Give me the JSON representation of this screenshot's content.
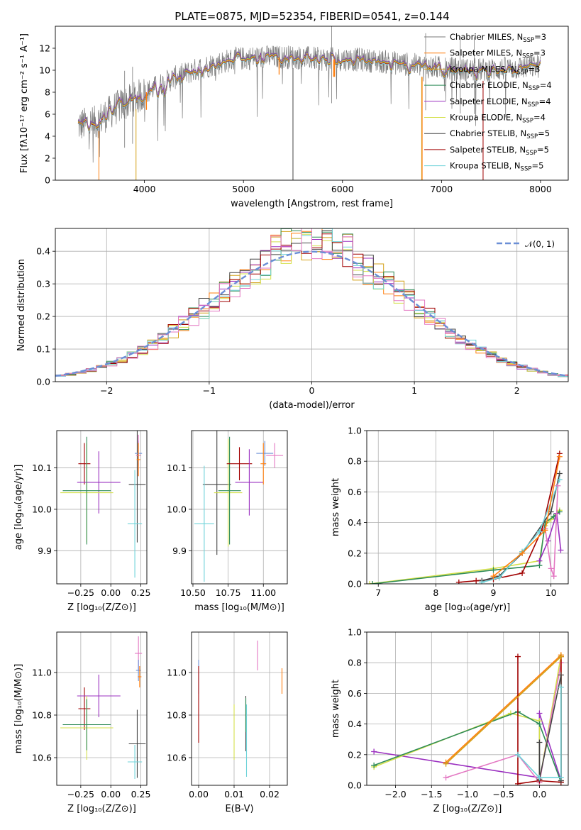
{
  "figure": {
    "title": "PLATE=0875, MJD=52354, FIBERID=0541, z=0.144"
  },
  "colors": {
    "series": [
      "#7a7a7a",
      "#ff7f0e",
      "#d4a017",
      "#2e8b57",
      "#9b30c0",
      "#d4e04a",
      "#444444",
      "#a00000",
      "#6fd3d9"
    ],
    "extra": [
      "#e377c2",
      "#6b8fd6",
      "#d7c64a",
      "#4a4a4a"
    ],
    "normal_curve": "#6b8fd6",
    "grid": "#b0b0b0"
  },
  "chart_data": [
    {
      "id": "spectrum",
      "type": "line",
      "title": "PLATE=0875, MJD=52354, FIBERID=0541, z=0.144",
      "xlabel": "wavelength [Angstrom, rest frame]",
      "ylabel": "Flux [fλ10⁻¹⁷ erg cm⁻² s⁻¹ A⁻¹]",
      "xlim": [
        3100,
        8280
      ],
      "ylim": [
        0,
        14
      ],
      "xticks": [
        4000,
        5000,
        6000,
        7000,
        8000
      ],
      "yticks": [
        0,
        2,
        4,
        6,
        8,
        10,
        12
      ],
      "grid": false,
      "legend_position": "top-right",
      "continuum": {
        "x": [
          3330,
          3500,
          3700,
          3900,
          4100,
          4300,
          4600,
          4900,
          5200,
          5500,
          5800,
          6100,
          6400,
          6700,
          7000,
          7300,
          7600,
          7900,
          8000
        ],
        "y": [
          5.0,
          5.2,
          6.5,
          7.4,
          8.4,
          9.3,
          10.3,
          11.0,
          11.2,
          11.2,
          11.0,
          11.0,
          10.8,
          10.5,
          10.2,
          10.0,
          10.1,
          10.3,
          10.4
        ]
      },
      "series": [
        {
          "name": "Chabrier MILES, N_SSP=3",
          "label": "Chabrier MILES, N",
          "sub": "SSP",
          "suffix": "=3"
        },
        {
          "name": "Salpeter MILES, N_SSP=3",
          "label": "Salpeter MILES, N",
          "sub": "SSP",
          "suffix": "=3"
        },
        {
          "name": "Kroupa MILES, N_SSP=3",
          "label": "Kroupa MILES, N",
          "sub": "SSP",
          "suffix": "=3"
        },
        {
          "name": "Chabrier ELODIE, N_SSP=4",
          "label": "Chabrier ELODIE, N",
          "sub": "SSP",
          "suffix": "=4"
        },
        {
          "name": "Salpeter ELODIE, N_SSP=4",
          "label": "Salpeter ELODIE, N",
          "sub": "SSP",
          "suffix": "=4"
        },
        {
          "name": "Kroupa ELODIE, N_SSP=4",
          "label": "Kroupa ELODIE, N",
          "sub": "SSP",
          "suffix": "=4"
        },
        {
          "name": "Chabrier STELIB, N_SSP=5",
          "label": "Chabrier STELIB, N",
          "sub": "SSP",
          "suffix": "=5"
        },
        {
          "name": "Salpeter STELIB, N_SSP=5",
          "label": "Salpeter STELIB, N",
          "sub": "SSP",
          "suffix": "=5"
        },
        {
          "name": "Kroupa STELIB, N_SSP=5",
          "label": "Kroupa STELIB, N",
          "sub": "SSP",
          "suffix": "=5"
        }
      ]
    },
    {
      "id": "residuals",
      "type": "histogram",
      "xlabel": "(data-model)/error",
      "ylabel": "Normed distribution",
      "xlim": [
        -2.5,
        2.5
      ],
      "ylim": [
        0,
        0.47
      ],
      "xticks": [
        -2,
        -1,
        0,
        1,
        2
      ],
      "xtick_labels": [
        "−2",
        "−1",
        "0",
        "1",
        "2"
      ],
      "yticks": [
        0.0,
        0.1,
        0.2,
        0.3,
        0.4
      ],
      "ytick_labels": [
        "0.0",
        "0.1",
        "0.2",
        "0.3",
        "0.4"
      ],
      "grid": true,
      "legend": "𝒩(0, 1)",
      "legend_position": "top-right",
      "bin_width": 0.1
    },
    {
      "id": "age_vs_Z",
      "type": "errorbar",
      "xlabel": "Z [log₁₀(Z/Z⊙)]",
      "ylabel": "age  [log₁₀(age/yr)]",
      "xlim": [
        -0.45,
        0.3
      ],
      "ylim": [
        9.82,
        10.19
      ],
      "xticks": [
        -0.25,
        0.0,
        0.25
      ],
      "xtick_labels": [
        "−0.25",
        "0.00",
        "0.25"
      ],
      "yticks": [
        9.9,
        10.0,
        10.1
      ],
      "ytick_labels": [
        "9.9",
        "10.0",
        "10.1"
      ],
      "grid": true,
      "points": [
        {
          "x": -0.22,
          "y": 10.11,
          "xe": 0.05,
          "ye": 0.05,
          "c": 7
        },
        {
          "x": -0.1,
          "y": 10.065,
          "xe": 0.18,
          "ye": 0.075,
          "c": 4
        },
        {
          "x": -0.2,
          "y": 10.04,
          "xe": 0.22,
          "ye": 0.12,
          "c": 5
        },
        {
          "x": -0.2,
          "y": 10.045,
          "xe": 0.2,
          "ye": 0.13,
          "c": 3
        },
        {
          "x": 0.22,
          "y": 10.06,
          "xe": 0.07,
          "ye": 0.14,
          "c": 6
        },
        {
          "x": 0.2,
          "y": 9.965,
          "xe": 0.06,
          "ye": 0.13,
          "c": 8
        },
        {
          "x": 0.23,
          "y": 10.135,
          "xe": 0.03,
          "ye": 0.03,
          "c": 10
        },
        {
          "x": 0.23,
          "y": 10.13,
          "xe": 0.02,
          "ye": 0.05,
          "c": 9
        },
        {
          "x": 0.23,
          "y": 10.12,
          "xe": 0.015,
          "ye": 0.04,
          "c": 1
        }
      ]
    },
    {
      "id": "age_vs_mass",
      "type": "errorbar",
      "xlabel": "mass [log₁₀(M/M⊙)]",
      "ylabel": "",
      "xlim": [
        10.49,
        11.17
      ],
      "ylim": [
        9.82,
        10.19
      ],
      "xticks": [
        10.5,
        10.75,
        11.0
      ],
      "xtick_labels": [
        "10.50",
        "10.75",
        "11.00"
      ],
      "yticks": [
        9.9,
        10.0,
        10.1
      ],
      "ytick_labels": [
        "9.9",
        "10.0",
        "10.1"
      ],
      "grid": true,
      "points": [
        {
          "x": 10.67,
          "y": 10.06,
          "xe": 0.1,
          "ye": 0.17,
          "c": 6
        },
        {
          "x": 10.58,
          "y": 9.965,
          "xe": 0.07,
          "ye": 0.14,
          "c": 8
        },
        {
          "x": 10.75,
          "y": 10.04,
          "xe": 0.1,
          "ye": 0.13,
          "c": 5
        },
        {
          "x": 10.76,
          "y": 10.045,
          "xe": 0.08,
          "ye": 0.13,
          "c": 3
        },
        {
          "x": 10.83,
          "y": 10.11,
          "xe": 0.09,
          "ye": 0.04,
          "c": 7
        },
        {
          "x": 10.9,
          "y": 10.065,
          "xe": 0.1,
          "ye": 0.08,
          "c": 4
        },
        {
          "x": 11.01,
          "y": 10.135,
          "xe": 0.06,
          "ye": 0.03,
          "c": 10
        },
        {
          "x": 11.08,
          "y": 10.13,
          "xe": 0.06,
          "ye": 0.03,
          "c": 9
        },
        {
          "x": 11.0,
          "y": 10.11,
          "xe": 0.02,
          "ye": 0.05,
          "c": 1
        }
      ]
    },
    {
      "id": "mass_weight_vs_age",
      "type": "line",
      "xlabel": "age  [log₁₀(age/yr)]",
      "ylabel": "mass weight",
      "xlim": [
        6.8,
        10.3
      ],
      "ylim": [
        0,
        1.0
      ],
      "xticks": [
        7,
        8,
        9,
        10
      ],
      "xtick_labels": [
        "7",
        "8",
        "9",
        "10"
      ],
      "yticks": [
        0.0,
        0.2,
        0.4,
        0.6,
        0.8,
        1.0
      ],
      "ytick_labels": [
        "0.0",
        "0.2",
        "0.4",
        "0.6",
        "0.8",
        "1.0"
      ],
      "grid": true,
      "lines": [
        {
          "c": 5,
          "x": [
            6.85,
            9.0,
            9.8,
            9.9,
            10.0,
            10.1,
            10.15
          ],
          "y": [
            0.0,
            0.1,
            0.15,
            0.38,
            0.42,
            0.46,
            0.48
          ]
        },
        {
          "c": 3,
          "x": [
            6.9,
            9.0,
            9.8,
            9.9,
            10.05,
            10.15
          ],
          "y": [
            0.0,
            0.09,
            0.12,
            0.4,
            0.44,
            0.47
          ]
        },
        {
          "c": 7,
          "x": [
            8.4,
            8.7,
            9.0,
            9.5,
            9.85,
            10.15
          ],
          "y": [
            0.01,
            0.02,
            0.03,
            0.07,
            0.36,
            0.85
          ]
        },
        {
          "c": 6,
          "x": [
            8.8,
            9.1,
            9.5,
            10.0,
            10.15
          ],
          "y": [
            0.02,
            0.05,
            0.2,
            0.47,
            0.72
          ]
        },
        {
          "c": 8,
          "x": [
            8.8,
            9.1,
            9.5,
            9.8,
            10.15
          ],
          "y": [
            0.01,
            0.04,
            0.21,
            0.34,
            0.68
          ]
        },
        {
          "c": 4,
          "x": [
            9.8,
            9.95,
            10.1,
            10.17
          ],
          "y": [
            0.15,
            0.28,
            0.46,
            0.22
          ]
        },
        {
          "c": 9,
          "x": [
            9.9,
            10.0,
            10.05,
            10.12
          ],
          "y": [
            0.36,
            0.1,
            0.05,
            0.64
          ]
        },
        {
          "c": 1,
          "x": [
            9.0,
            9.5,
            9.9,
            10.15
          ],
          "y": [
            0.05,
            0.2,
            0.35,
            0.83
          ]
        }
      ]
    },
    {
      "id": "mass_vs_Z",
      "type": "errorbar",
      "xlabel": "Z [log₁₀(Z/Z⊙)]",
      "ylabel": "mass [log₁₀(M/M⊙)]",
      "xlim": [
        -0.45,
        0.3
      ],
      "ylim": [
        10.47,
        11.19
      ],
      "xticks": [
        -0.25,
        0.0,
        0.25
      ],
      "xtick_labels": [
        "−0.25",
        "0.00",
        "0.25"
      ],
      "yticks": [
        10.6,
        10.8,
        11.0
      ],
      "ytick_labels": [
        "10.6",
        "10.8",
        "11.0"
      ],
      "grid": true,
      "points": [
        {
          "x": -0.22,
          "y": 10.83,
          "xe": 0.05,
          "ye": 0.1,
          "c": 7
        },
        {
          "x": -0.1,
          "y": 10.89,
          "xe": 0.18,
          "ye": 0.1,
          "c": 4
        },
        {
          "x": -0.2,
          "y": 10.74,
          "xe": 0.22,
          "ye": 0.15,
          "c": 5
        },
        {
          "x": -0.2,
          "y": 10.755,
          "xe": 0.2,
          "ye": 0.12,
          "c": 3
        },
        {
          "x": 0.22,
          "y": 10.665,
          "xe": 0.07,
          "ye": 0.16,
          "c": 6
        },
        {
          "x": 0.2,
          "y": 10.58,
          "xe": 0.06,
          "ye": 0.08,
          "c": 8
        },
        {
          "x": 0.23,
          "y": 11.09,
          "xe": 0.03,
          "ye": 0.08,
          "c": 9
        },
        {
          "x": 0.23,
          "y": 11.01,
          "xe": 0.02,
          "ye": 0.05,
          "c": 10
        },
        {
          "x": 0.24,
          "y": 10.98,
          "xe": 0.015,
          "ye": 0.05,
          "c": 1
        }
      ]
    },
    {
      "id": "mass_vs_ebv",
      "type": "errorbar",
      "xlabel": "E(B-V)",
      "ylabel": "",
      "xlim": [
        -0.002,
        0.025
      ],
      "ylim": [
        10.47,
        11.19
      ],
      "xticks": [
        0.0,
        0.01,
        0.02
      ],
      "xtick_labels": [
        "0.00",
        "0.01",
        "0.02"
      ],
      "yticks": [
        10.6,
        10.8,
        11.0
      ],
      "ytick_labels": [
        "10.6",
        "10.8",
        "11.0"
      ],
      "grid": true,
      "points": [
        {
          "x": 0.0,
          "y": 10.98,
          "xe": 0.0,
          "ye": 0.08,
          "c": 10
        },
        {
          "x": 0.0,
          "y": 10.85,
          "xe": 0.0,
          "ye": 0.18,
          "c": 7
        },
        {
          "x": 0.01,
          "y": 10.72,
          "xe": 0.0,
          "ye": 0.13,
          "c": 5
        },
        {
          "x": 0.0133,
          "y": 10.76,
          "xe": 0.0,
          "ye": 0.13,
          "c": 6
        },
        {
          "x": 0.0135,
          "y": 10.68,
          "xe": 0.0,
          "ye": 0.17,
          "c": 8
        },
        {
          "x": 0.0133,
          "y": 10.8,
          "xe": 0.0,
          "ye": 0.08,
          "c": 3
        },
        {
          "x": 0.0166,
          "y": 11.08,
          "xe": 0.0,
          "ye": 0.07,
          "c": 9
        },
        {
          "x": 0.0235,
          "y": 10.96,
          "xe": 0.0,
          "ye": 0.06,
          "c": 1
        }
      ]
    },
    {
      "id": "mass_weight_vs_Z",
      "type": "line",
      "xlabel": "Z [log₁₀(Z/Z⊙)]",
      "ylabel": "mass weight",
      "xlim": [
        -2.4,
        0.4
      ],
      "ylim": [
        0,
        1.0
      ],
      "xticks": [
        -2.0,
        -1.5,
        -1.0,
        -0.5,
        0.0
      ],
      "xtick_labels": [
        "−2.0",
        "−1.5",
        "−1.0",
        "−0.5",
        "0.0"
      ],
      "yticks": [
        0.0,
        0.2,
        0.4,
        0.6,
        0.8,
        1.0
      ],
      "ytick_labels": [
        "0.0",
        "0.2",
        "0.4",
        "0.6",
        "0.8",
        "1.0"
      ],
      "grid": true,
      "lines": [
        {
          "c": 4,
          "x": [
            -2.3,
            0.0,
            0.0,
            0.3
          ],
          "y": [
            0.22,
            0.05,
            0.47,
            0.03
          ]
        },
        {
          "c": 5,
          "x": [
            -2.3,
            -0.4,
            0.0,
            0.0,
            0.3
          ],
          "y": [
            0.12,
            0.47,
            0.42,
            0.02,
            0.85
          ]
        },
        {
          "c": 3,
          "x": [
            -2.3,
            -0.3,
            0.0,
            0.3
          ],
          "y": [
            0.13,
            0.48,
            0.4,
            0.02
          ]
        },
        {
          "c": 1,
          "x": [
            -1.3,
            0.3,
            0.3
          ],
          "y": [
            0.15,
            0.85,
            0.03
          ]
        },
        {
          "c": 9,
          "x": [
            -1.3,
            -0.3,
            0.0,
            0.3
          ],
          "y": [
            0.05,
            0.2,
            0.02,
            0.8
          ]
        },
        {
          "c": 7,
          "x": [
            -0.3,
            -0.3,
            0.0,
            0.3,
            0.3
          ],
          "y": [
            0.84,
            0.01,
            0.03,
            0.02,
            0.84
          ]
        },
        {
          "c": 6,
          "x": [
            0.0,
            0.0,
            0.3,
            0.3
          ],
          "y": [
            0.28,
            0.04,
            0.72,
            0.03
          ]
        },
        {
          "c": 8,
          "x": [
            -0.3,
            0.0,
            0.3,
            0.3
          ],
          "y": [
            0.2,
            0.05,
            0.05,
            0.64
          ]
        },
        {
          "c": 2,
          "x": [
            -1.3,
            0.3
          ],
          "y": [
            0.14,
            0.84
          ]
        }
      ]
    }
  ]
}
